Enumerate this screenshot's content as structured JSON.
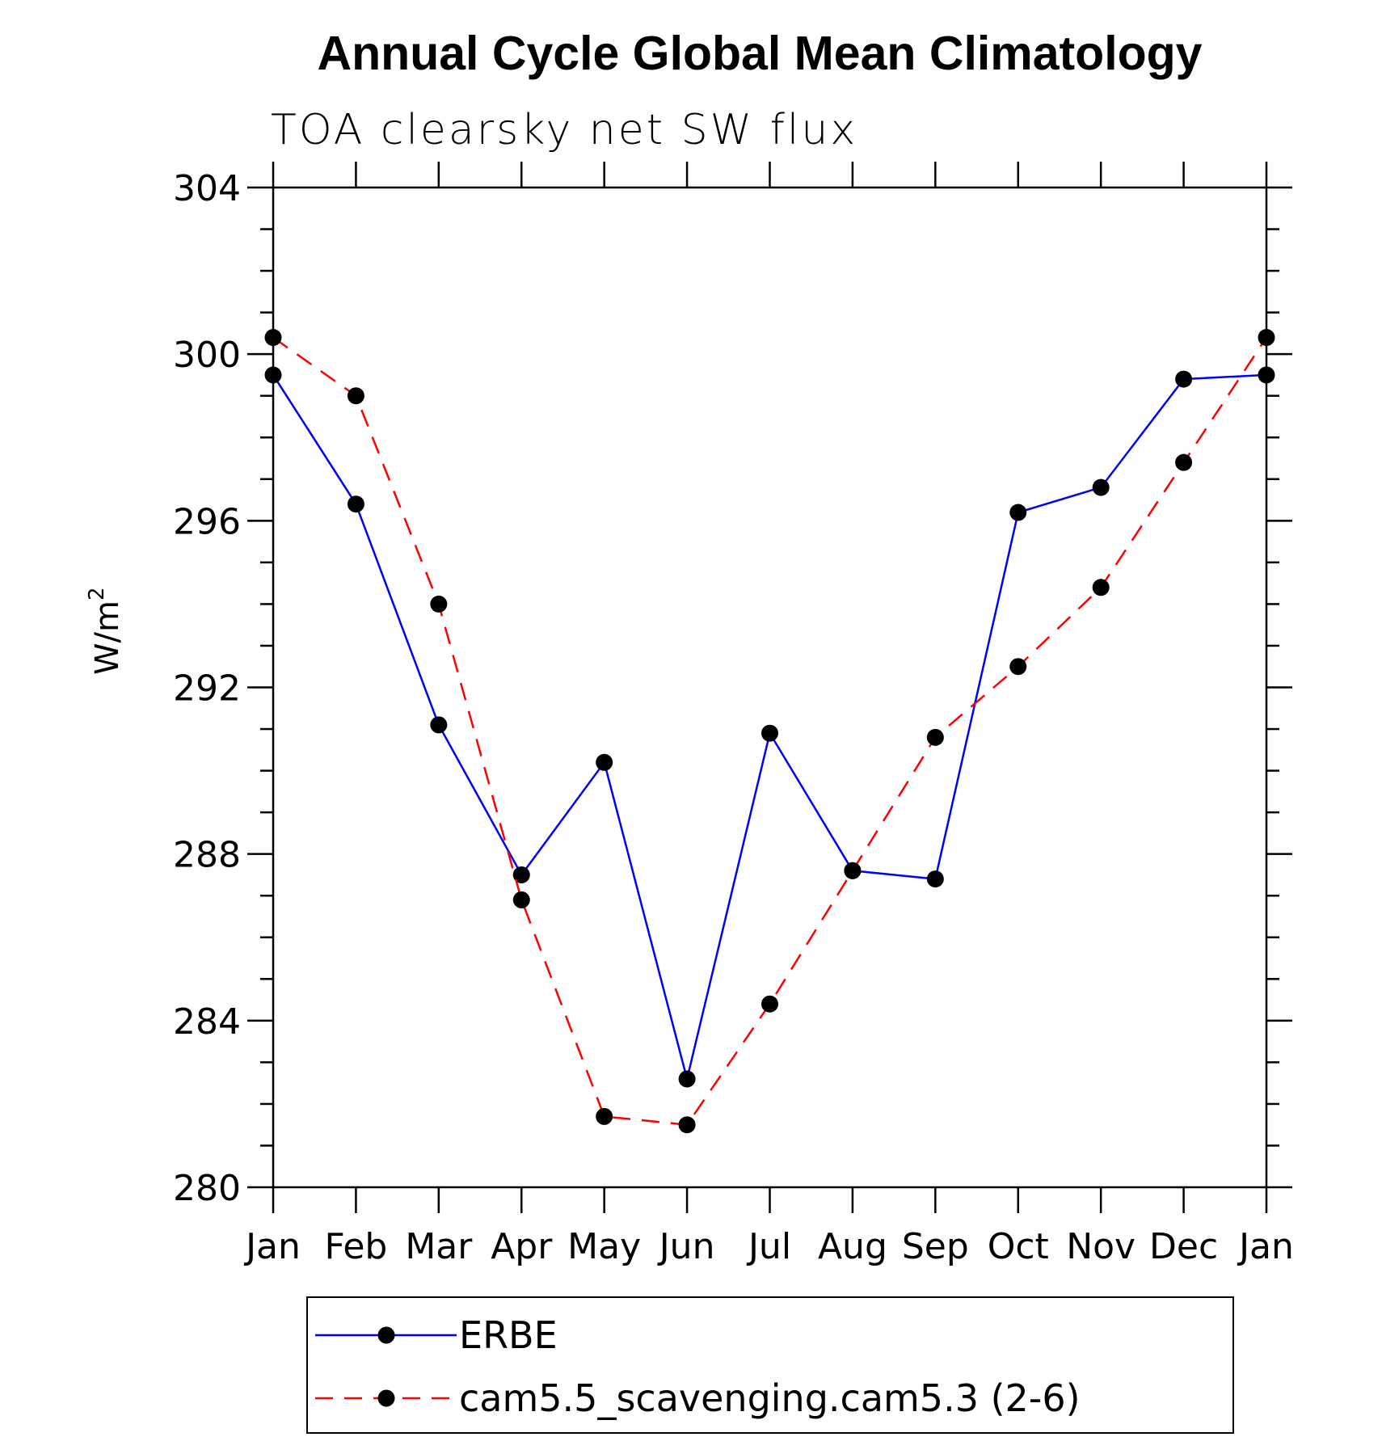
{
  "chart_data": {
    "type": "line",
    "title": "Annual Cycle Global Mean Climatology",
    "subtitle": "TOA clearsky net SW flux",
    "xlabel": "",
    "ylabel": "W/m",
    "ylabel_superscript": "2",
    "ylim": [
      280,
      304
    ],
    "yticks": [
      280,
      284,
      288,
      292,
      296,
      300,
      304
    ],
    "categories": [
      "Jan",
      "Feb",
      "Mar",
      "Apr",
      "May",
      "Jun",
      "Jul",
      "Aug",
      "Sep",
      "Oct",
      "Nov",
      "Dec",
      "Jan"
    ],
    "grid": false,
    "legend_position": "bottom",
    "series": [
      {
        "name": "ERBE",
        "color": "#0000ff",
        "dash": "solid",
        "marker": "circle",
        "values": [
          299.5,
          296.4,
          291.1,
          287.5,
          290.2,
          282.6,
          290.9,
          287.6,
          287.4,
          296.2,
          296.8,
          299.4,
          299.5
        ]
      },
      {
        "name": "cam5.5_scavenging.cam5.3 (2-6)",
        "color": "#ff0000",
        "dash": "dashed",
        "marker": "circle",
        "values": [
          300.4,
          299.0,
          294.0,
          286.9,
          281.7,
          281.5,
          284.4,
          287.6,
          290.8,
          292.5,
          294.4,
          297.4,
          300.4
        ]
      }
    ]
  }
}
